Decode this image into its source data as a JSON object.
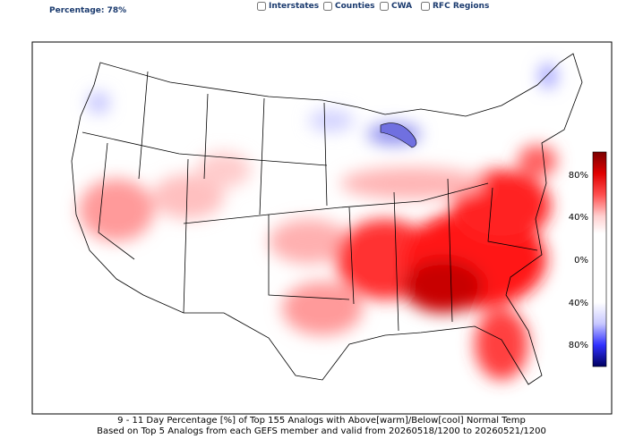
{
  "header": {
    "percentage": "Percentage: 78%"
  },
  "layers": [
    "Interstates",
    "Counties",
    "CWA",
    "RFC Regions"
  ],
  "colorbar": {
    "ticks": [
      "80%",
      "40%",
      "0%",
      "40%",
      "80%"
    ]
  },
  "caption": [
    "9 - 11 Day  Percentage [%] of Top 155 Analogs with Above[warm]/Below[cool] Normal Temp",
    "Based on Top 5 Analogs from each GEFS member and valid from 20260518/1200 to 20260521/1200"
  ]
}
